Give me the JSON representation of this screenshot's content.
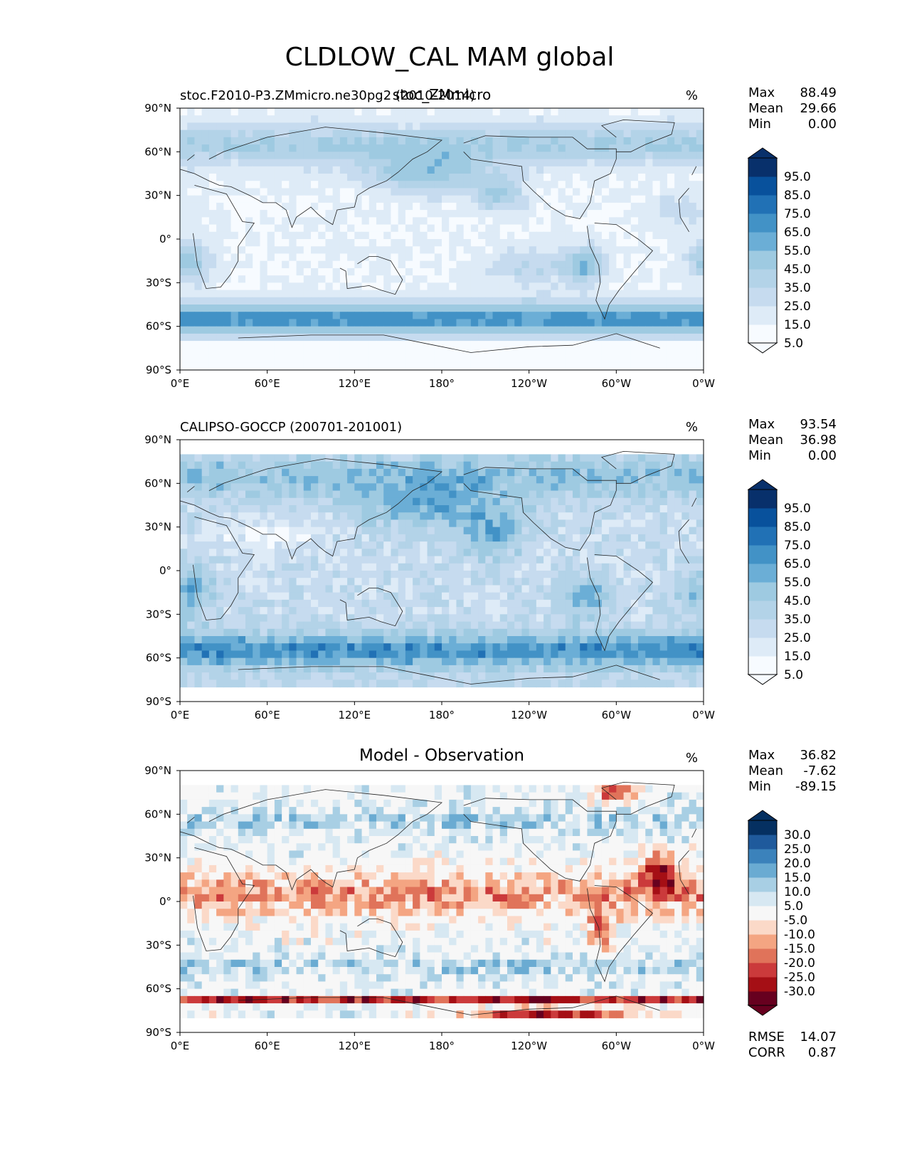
{
  "figure": {
    "title": "CLDLOW_CAL MAM global"
  },
  "colors": {
    "blues": [
      "#f7fbff",
      "#deebf7",
      "#c6dbef",
      "#b3d3e8",
      "#9ecae1",
      "#6baed6",
      "#4292c6",
      "#2171b5",
      "#08519c",
      "#08306b"
    ],
    "diff": [
      "#67001f",
      "#a50f15",
      "#cb3a3b",
      "#e0735a",
      "#f4a582",
      "#fbd9c8",
      "#f7f7f7",
      "#d7e8f2",
      "#a8cfe4",
      "#6aabd2",
      "#3b82bb",
      "#1f5a9c",
      "#053061"
    ]
  },
  "chart_data": [
    {
      "type": "heatmap",
      "panel": "model",
      "left_title": "stoc.F2010-P3.ZMmicro.ne30pg2 (2010-2014)",
      "center_title": "stoc_ZMmicro",
      "units": "%",
      "stats": {
        "max": "88.49",
        "mean": "29.66",
        "min": "0.00"
      },
      "stat_labels": [
        "Max",
        "Mean",
        "Min"
      ],
      "colorbar_levels": [
        "95.0",
        "85.0",
        "75.0",
        "65.0",
        "55.0",
        "45.0",
        "35.0",
        "25.0",
        "15.0",
        "5.0"
      ],
      "x_ticks": [
        "0°E",
        "60°E",
        "120°E",
        "180°",
        "120°W",
        "60°W",
        "0°W"
      ],
      "y_ticks": [
        "90°N",
        "60°N",
        "30°N",
        "0°",
        "30°S",
        "60°S",
        "90°S"
      ],
      "xlim": [
        0,
        360
      ],
      "ylim": [
        -90,
        90
      ]
    },
    {
      "type": "heatmap",
      "panel": "observation",
      "left_title": "CALIPSO-GOCCP (200701-201001)",
      "center_title": "",
      "units": "%",
      "stats": {
        "max": "93.54",
        "mean": "36.98",
        "min": "0.00"
      },
      "stat_labels": [
        "Max",
        "Mean",
        "Min"
      ],
      "colorbar_levels": [
        "95.0",
        "85.0",
        "75.0",
        "65.0",
        "55.0",
        "45.0",
        "35.0",
        "25.0",
        "15.0",
        "5.0"
      ],
      "x_ticks": [
        "0°E",
        "60°E",
        "120°E",
        "180°",
        "120°W",
        "60°W",
        "0°W"
      ],
      "y_ticks": [
        "90°N",
        "60°N",
        "30°N",
        "0°",
        "30°S",
        "60°S",
        "90°S"
      ],
      "xlim": [
        0,
        360
      ],
      "ylim": [
        -90,
        90
      ]
    },
    {
      "type": "heatmap",
      "panel": "difference",
      "left_title": "",
      "center_title": "Model - Observation",
      "units": "%",
      "stats": {
        "max": "36.82",
        "mean": "-7.62",
        "min": "-89.15"
      },
      "stat_labels": [
        "Max",
        "Mean",
        "Min"
      ],
      "colorbar_levels": [
        "30.0",
        "25.0",
        "20.0",
        "15.0",
        "10.0",
        "5.0",
        "-5.0",
        "-10.0",
        "-15.0",
        "-20.0",
        "-25.0",
        "-30.0"
      ],
      "x_ticks": [
        "0°E",
        "60°E",
        "120°E",
        "180°",
        "120°W",
        "60°W",
        "0°W"
      ],
      "y_ticks": [
        "90°N",
        "60°N",
        "30°N",
        "0°",
        "30°S",
        "60°S",
        "90°S"
      ],
      "xlim": [
        0,
        360
      ],
      "ylim": [
        -90,
        90
      ],
      "metrics": {
        "rmse_label": "RMSE",
        "rmse": "14.07",
        "corr_label": "CORR",
        "corr": "0.87"
      }
    }
  ]
}
